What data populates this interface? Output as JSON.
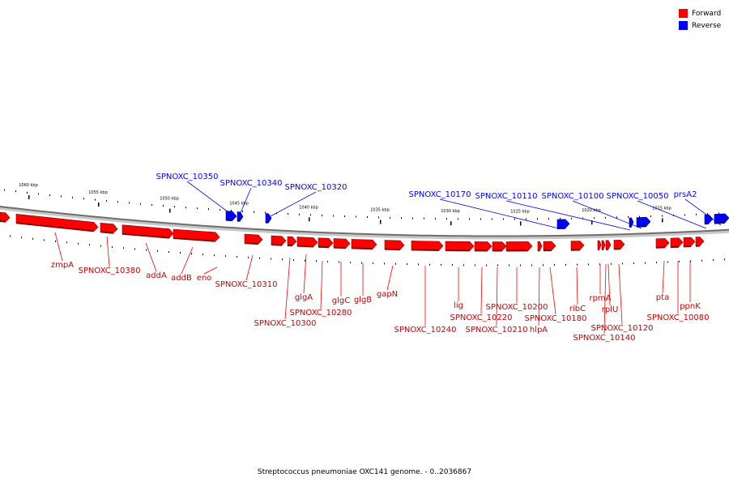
{
  "legend": {
    "forward": {
      "label": "Forward",
      "color": "#ff0000"
    },
    "reverse": {
      "label": "Reverse",
      "color": "#0000ff"
    }
  },
  "caption": "Streptococcus pneumoniae OXC141 genome. - 0..2036867",
  "scale_labels": [
    "1060 kbp",
    "1055 kbp",
    "1050 kbp",
    "1045 kbp",
    "1040 kbp",
    "1035 kbp",
    "1030 kbp",
    "1025 kbp",
    "1020 kbp",
    "1015 kbp"
  ],
  "reverse_genes": [
    "SPNOXC_10350",
    "SPNOXC_10340",
    "SPNOXC_10320",
    "SPNOXC_10170",
    "SPNOXC_10110",
    "SPNOXC_10100",
    "SPNOXC_10050",
    "prsA2"
  ],
  "forward_genes": [
    "zmpA",
    "SPNOXC_10380",
    "addA",
    "addB",
    "eno",
    "SPNOXC_10310",
    "glgA",
    "SPNOXC_10300",
    "SPNOXC_10280",
    "glgC",
    "glgB",
    "gapN",
    "SPNOXC_10240",
    "lig",
    "SPNOXC_10220",
    "SPNOXC_10210",
    "SPNOXC_10200",
    "hlpA",
    "SPNOXC_10180",
    "ribC",
    "rpmA",
    "rplU",
    "SPNOXC_10120",
    "SPNOXC_10140",
    "pta",
    "ppnK",
    "SPNOXC_10080"
  ]
}
